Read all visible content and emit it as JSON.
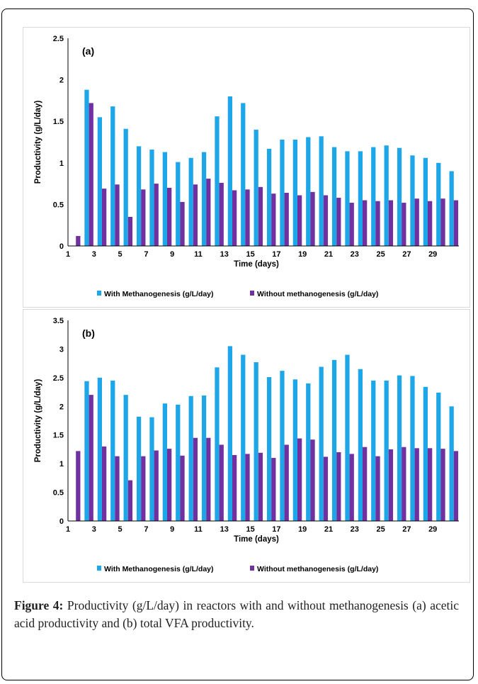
{
  "colors": {
    "with": "#1ea7e8",
    "without": "#7030a0"
  },
  "caption": {
    "label": "Figure 4:",
    "text": " Productivity (g/L/day) in reactors with and without methanogenesis (a) acetic acid productivity and (b) total VFA productivity."
  },
  "chart_data": [
    {
      "type": "bar",
      "panel_label": "(a)",
      "xlabel": "Time (days)",
      "ylabel": "Productivity (g/L/day)",
      "ylim": [
        0,
        2.5
      ],
      "yticks": [
        "0",
        "0.5",
        "1",
        "1.5",
        "2",
        "2.5"
      ],
      "yticks_values": [
        0,
        0.5,
        1,
        1.5,
        2,
        2.5
      ],
      "categories": [
        1,
        2,
        3,
        4,
        5,
        6,
        7,
        8,
        9,
        10,
        11,
        12,
        13,
        14,
        15,
        16,
        17,
        18,
        19,
        20,
        21,
        22,
        23,
        24,
        25,
        26,
        27,
        28,
        29,
        30
      ],
      "xtick_labels": [
        "1",
        "3",
        "5",
        "7",
        "9",
        "11",
        "13",
        "15",
        "17",
        "19",
        "21",
        "23",
        "25",
        "27",
        "29"
      ],
      "legend_position": "bottom",
      "series": [
        {
          "name": "With Methanogenesis (g/L/day)",
          "values": [
            0,
            1.88,
            1.55,
            1.68,
            1.41,
            1.2,
            1.16,
            1.13,
            1.01,
            1.06,
            1.13,
            1.56,
            1.8,
            1.72,
            1.4,
            1.17,
            1.28,
            1.28,
            1.31,
            1.32,
            1.19,
            1.14,
            1.14,
            1.19,
            1.21,
            1.18,
            1.09,
            1.06,
            1.0,
            0.9
          ]
        },
        {
          "name": "Without methanogenesis (g/L/day)",
          "values": [
            0.12,
            1.72,
            0.69,
            0.74,
            0.35,
            0.68,
            0.75,
            0.7,
            0.53,
            0.74,
            0.81,
            0.76,
            0.67,
            0.68,
            0.71,
            0.63,
            0.64,
            0.61,
            0.65,
            0.61,
            0.58,
            0.52,
            0.55,
            0.54,
            0.55,
            0.52,
            0.57,
            0.54,
            0.57,
            0.55
          ]
        }
      ]
    },
    {
      "type": "bar",
      "panel_label": "(b)",
      "xlabel": "Time (days)",
      "ylabel": "Productivity (g/L/day)",
      "ylim": [
        0,
        3.5
      ],
      "yticks": [
        "0",
        "0.5",
        "1",
        "1.5",
        "2",
        "2.5",
        "3",
        "3.5"
      ],
      "yticks_values": [
        0,
        0.5,
        1,
        1.5,
        2,
        2.5,
        3,
        3.5
      ],
      "categories": [
        1,
        2,
        3,
        4,
        5,
        6,
        7,
        8,
        9,
        10,
        11,
        12,
        13,
        14,
        15,
        16,
        17,
        18,
        19,
        20,
        21,
        22,
        23,
        24,
        25,
        26,
        27,
        28,
        29,
        30
      ],
      "xtick_labels": [
        "1",
        "3",
        "5",
        "7",
        "9",
        "11",
        "13",
        "15",
        "17",
        "19",
        "21",
        "23",
        "25",
        "27",
        "29"
      ],
      "legend_position": "bottom",
      "series": [
        {
          "name": "With Methanogenesis (g/L/day)",
          "values": [
            0,
            2.44,
            2.5,
            2.45,
            2.2,
            1.82,
            1.81,
            2.05,
            2.03,
            2.18,
            2.19,
            2.68,
            3.05,
            2.9,
            2.77,
            2.51,
            2.62,
            2.47,
            2.4,
            2.69,
            2.81,
            2.9,
            2.65,
            2.45,
            2.45,
            2.54,
            2.53,
            2.34,
            2.24,
            2.0
          ]
        },
        {
          "name": "Without methanogenesis (g/L/day)",
          "values": [
            1.22,
            2.2,
            1.3,
            1.13,
            0.71,
            1.13,
            1.23,
            1.26,
            1.14,
            1.45,
            1.45,
            1.33,
            1.15,
            1.17,
            1.19,
            1.1,
            1.33,
            1.44,
            1.42,
            1.12,
            1.2,
            1.17,
            1.29,
            1.13,
            1.25,
            1.29,
            1.27,
            1.27,
            1.26,
            1.22
          ]
        }
      ]
    }
  ]
}
